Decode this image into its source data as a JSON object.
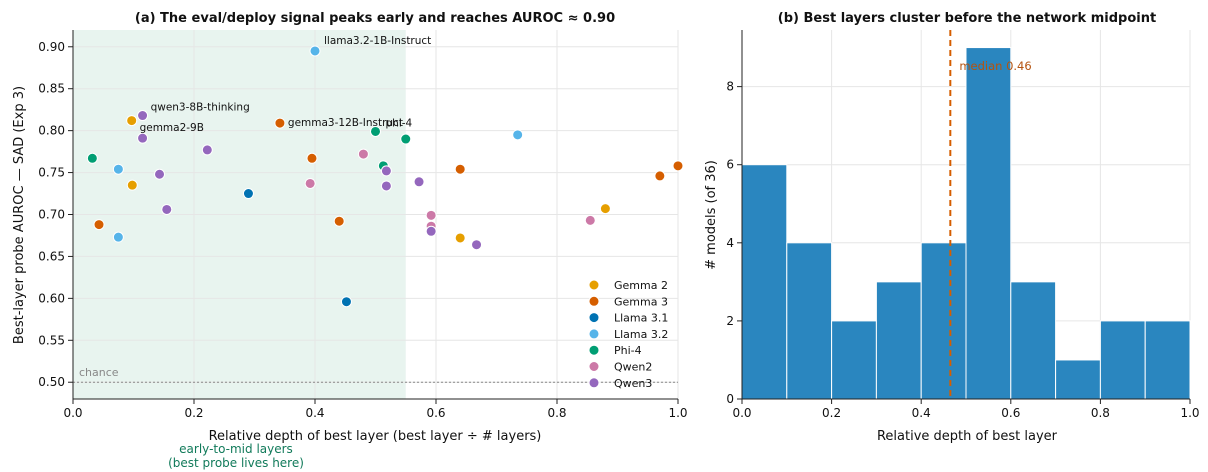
{
  "chart_data": [
    {
      "type": "scatter",
      "title": "(a) The eval/deploy signal peaks early and reaches AUROC ≈ 0.90",
      "xlabel": "Relative depth of best layer (best layer ÷ # layers)",
      "ylabel": "Best-layer probe AUROC — SAD (Exp 3)",
      "xlim": [
        0,
        1.0
      ],
      "ylim": [
        0.48,
        0.92
      ],
      "xticks": [
        "0.0",
        "0.2",
        "0.4",
        "0.6",
        "0.8",
        "1.0"
      ],
      "yticks": [
        "0.50",
        "0.55",
        "0.60",
        "0.65",
        "0.70",
        "0.75",
        "0.80",
        "0.85",
        "0.90"
      ],
      "grid": true,
      "legend_position": "bottom-right",
      "shaded_region": {
        "x_from": 0,
        "x_to": 0.55,
        "label": "early-to-mid layers\n(best probe lives here)",
        "color": "#e8f4ef"
      },
      "reference_line": {
        "y": 0.5,
        "label": "chance"
      },
      "series": [
        {
          "name": "Gemma 2",
          "color": "#E69F00",
          "points": [
            [
              0.097,
              0.812
            ],
            [
              0.098,
              0.735
            ],
            [
              0.64,
              0.672
            ],
            [
              0.88,
              0.707
            ]
          ]
        },
        {
          "name": "Gemma 3",
          "color": "#D55E00",
          "points": [
            [
              0.043,
              0.688
            ],
            [
              0.342,
              0.809
            ],
            [
              0.395,
              0.767
            ],
            [
              0.44,
              0.692
            ],
            [
              0.64,
              0.754
            ],
            [
              0.97,
              0.746
            ],
            [
              1.0,
              0.758
            ]
          ]
        },
        {
          "name": "Llama 3.1",
          "color": "#0072B2",
          "points": [
            [
              0.29,
              0.725
            ],
            [
              0.452,
              0.596
            ]
          ]
        },
        {
          "name": "Llama 3.2",
          "color": "#56B4E9",
          "points": [
            [
              0.075,
              0.754
            ],
            [
              0.075,
              0.673
            ],
            [
              0.4,
              0.895
            ],
            [
              0.735,
              0.795
            ]
          ]
        },
        {
          "name": "Phi-4",
          "color": "#009E73",
          "points": [
            [
              0.032,
              0.767
            ],
            [
              0.5,
              0.799
            ],
            [
              0.513,
              0.758
            ],
            [
              0.55,
              0.79
            ]
          ]
        },
        {
          "name": "Qwen2",
          "color": "#CC79A7",
          "points": [
            [
              0.392,
              0.737
            ],
            [
              0.48,
              0.772
            ],
            [
              0.592,
              0.699
            ],
            [
              0.592,
              0.686
            ],
            [
              0.855,
              0.693
            ]
          ]
        },
        {
          "name": "Qwen3",
          "color": "#9467BD",
          "points": [
            [
              0.115,
              0.818
            ],
            [
              0.115,
              0.791
            ],
            [
              0.143,
              0.748
            ],
            [
              0.155,
              0.706
            ],
            [
              0.222,
              0.777
            ],
            [
              0.518,
              0.752
            ],
            [
              0.518,
              0.734
            ],
            [
              0.572,
              0.739
            ],
            [
              0.592,
              0.68
            ],
            [
              0.667,
              0.664
            ]
          ]
        }
      ],
      "annotations": [
        {
          "text": "llama3.2-1B-Instruct",
          "x": 0.4,
          "y": 0.895
        },
        {
          "text": "qwen3-8B-thinking",
          "x": 0.115,
          "y": 0.818
        },
        {
          "text": "gemma2-9B",
          "x": 0.115,
          "y": 0.791
        },
        {
          "text": "phi-4",
          "x": 0.5,
          "y": 0.799
        },
        {
          "text": "gemma3-12B-Instruct",
          "x": 0.342,
          "y": 0.809
        }
      ]
    },
    {
      "type": "bar",
      "title": "(b) Best layers cluster before the network midpoint",
      "xlabel": "Relative depth of best layer",
      "ylabel": "# models (of 36)",
      "xlim": [
        0,
        1.0
      ],
      "ylim": [
        0,
        9.45
      ],
      "xticks": [
        "0.0",
        "0.2",
        "0.4",
        "0.6",
        "0.8",
        "1.0"
      ],
      "yticks": [
        "0",
        "2",
        "4",
        "6",
        "8"
      ],
      "grid": true,
      "bar_color": "#2a86bf",
      "bins": [
        [
          0.0,
          0.1
        ],
        [
          0.1,
          0.2
        ],
        [
          0.2,
          0.3
        ],
        [
          0.3,
          0.4
        ],
        [
          0.4,
          0.5
        ],
        [
          0.5,
          0.6
        ],
        [
          0.6,
          0.7
        ],
        [
          0.7,
          0.8
        ],
        [
          0.8,
          0.9
        ],
        [
          0.9,
          1.0
        ]
      ],
      "values": [
        6,
        4,
        2,
        3,
        4,
        9,
        3,
        1,
        2,
        2
      ],
      "median": {
        "x": 0.465,
        "label": "median 0.46",
        "color": "#D55E00"
      }
    }
  ]
}
